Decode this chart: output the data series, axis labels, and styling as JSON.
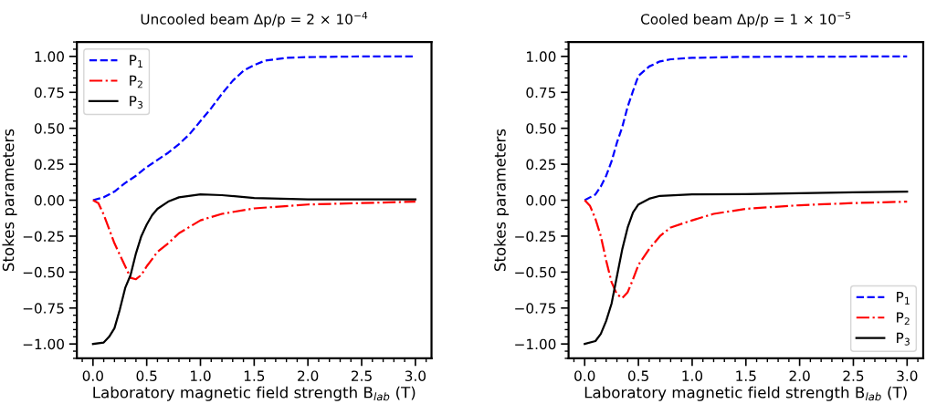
{
  "chart_data": [
    {
      "type": "line",
      "title": "Uncooled beam Δp/p = 2 × 10$^{−4}$",
      "xlabel": "Laboratory magnetic field strength B$_{lab}$ (T)",
      "ylabel": "Stokes parameters",
      "xlim": [
        -0.15,
        3.15
      ],
      "ylim": [
        -1.1,
        1.1
      ],
      "xticks": [
        {
          "value": 0,
          "label": "0.0"
        },
        {
          "value": 0.5,
          "label": "0.5"
        },
        {
          "value": 1,
          "label": "1.0"
        },
        {
          "value": 1.5,
          "label": "1.5"
        },
        {
          "value": 2,
          "label": "2.0"
        },
        {
          "value": 2.5,
          "label": "2.5"
        },
        {
          "value": 3,
          "label": "3.0"
        }
      ],
      "yticks": [
        {
          "value": -1,
          "label": "−1.00"
        },
        {
          "value": -0.75,
          "label": "−0.75"
        },
        {
          "value": -0.5,
          "label": "−0.50"
        },
        {
          "value": -0.25,
          "label": "−0.25"
        },
        {
          "value": 0,
          "label": "0.00"
        },
        {
          "value": 0.25,
          "label": "0.25"
        },
        {
          "value": 0.5,
          "label": "0.50"
        },
        {
          "value": 0.75,
          "label": "0.75"
        },
        {
          "value": 1,
          "label": "1.00"
        }
      ],
      "grid": false,
      "legend": "top left",
      "marker": "none",
      "series": [
        {
          "name": "P$_{1}$",
          "color": "#0000ff",
          "line_style": "dashed",
          "x": [
            0,
            0.1,
            0.2,
            0.3,
            0.4,
            0.5,
            0.6,
            0.7,
            0.8,
            0.9,
            1.0,
            1.1,
            1.2,
            1.3,
            1.4,
            1.5,
            1.6,
            1.7,
            1.8,
            2.0,
            2.5,
            3.0
          ],
          "values": [
            0,
            0.02,
            0.06,
            0.12,
            0.17,
            0.23,
            0.28,
            0.33,
            0.39,
            0.46,
            0.55,
            0.64,
            0.74,
            0.83,
            0.9,
            0.94,
            0.97,
            0.98,
            0.99,
            0.995,
            1.0,
            1.0
          ]
        },
        {
          "name": "P$_{2}$",
          "color": "#ff0000",
          "line_style": "dashdot",
          "x": [
            0,
            0.05,
            0.1,
            0.2,
            0.3,
            0.35,
            0.4,
            0.45,
            0.5,
            0.6,
            0.7,
            0.8,
            1.0,
            1.2,
            1.5,
            2.0,
            2.5,
            3.0
          ],
          "values": [
            0,
            -0.02,
            -0.1,
            -0.3,
            -0.46,
            -0.54,
            -0.55,
            -0.52,
            -0.46,
            -0.36,
            -0.3,
            -0.23,
            -0.14,
            -0.095,
            -0.057,
            -0.03,
            -0.02,
            -0.01
          ]
        },
        {
          "name": "P$_{3}$",
          "color": "#000000",
          "line_style": "solid",
          "x": [
            0,
            0.1,
            0.15,
            0.2,
            0.25,
            0.3,
            0.35,
            0.4,
            0.45,
            0.5,
            0.55,
            0.6,
            0.7,
            0.8,
            1.0,
            1.2,
            1.5,
            2.0,
            3.0
          ],
          "values": [
            -1,
            -0.99,
            -0.95,
            -0.89,
            -0.76,
            -0.61,
            -0.52,
            -0.37,
            -0.25,
            -0.17,
            -0.105,
            -0.06,
            -0.01,
            0.02,
            0.04,
            0.035,
            0.015,
            0.005,
            0.005
          ]
        }
      ]
    },
    {
      "type": "line",
      "title": "Cooled beam Δp/p = 1 × 10$^{−5}$",
      "xlabel": "Laboratory magnetic field strength B$_{lab}$ (T)",
      "ylabel": "Stokes parameters",
      "xlim": [
        -0.15,
        3.15
      ],
      "ylim": [
        -1.1,
        1.1
      ],
      "xticks": [
        {
          "value": 0,
          "label": "0.0"
        },
        {
          "value": 0.5,
          "label": "0.5"
        },
        {
          "value": 1,
          "label": "1.0"
        },
        {
          "value": 1.5,
          "label": "1.5"
        },
        {
          "value": 2,
          "label": "2.0"
        },
        {
          "value": 2.5,
          "label": "2.5"
        },
        {
          "value": 3,
          "label": "3.0"
        }
      ],
      "yticks": [
        {
          "value": -1,
          "label": "−1.00"
        },
        {
          "value": -0.75,
          "label": "−0.75"
        },
        {
          "value": -0.5,
          "label": "−0.50"
        },
        {
          "value": -0.25,
          "label": "−0.25"
        },
        {
          "value": 0,
          "label": "0.00"
        },
        {
          "value": 0.25,
          "label": "0.25"
        },
        {
          "value": 0.5,
          "label": "0.50"
        },
        {
          "value": 0.75,
          "label": "0.75"
        },
        {
          "value": 1,
          "label": "1.00"
        }
      ],
      "grid": false,
      "legend": "bottom right",
      "marker": "none",
      "series": [
        {
          "name": "P$_{1}$",
          "color": "#0000ff",
          "line_style": "dashed",
          "x": [
            0,
            0.1,
            0.15,
            0.2,
            0.25,
            0.3,
            0.35,
            0.4,
            0.45,
            0.5,
            0.6,
            0.7,
            0.8,
            1.0,
            1.5,
            3.0
          ],
          "values": [
            0,
            0.04,
            0.095,
            0.17,
            0.27,
            0.4,
            0.51,
            0.65,
            0.76,
            0.865,
            0.93,
            0.965,
            0.98,
            0.99,
            0.997,
            1.0
          ]
        },
        {
          "name": "P$_{2}$",
          "color": "#ff0000",
          "line_style": "dashdot",
          "x": [
            0,
            0.05,
            0.1,
            0.15,
            0.2,
            0.25,
            0.3,
            0.35,
            0.4,
            0.45,
            0.5,
            0.6,
            0.7,
            0.8,
            1.0,
            1.2,
            1.5,
            2.0,
            2.5,
            3.0
          ],
          "values": [
            0,
            -0.04,
            -0.13,
            -0.25,
            -0.42,
            -0.57,
            -0.655,
            -0.68,
            -0.64,
            -0.55,
            -0.45,
            -0.34,
            -0.25,
            -0.19,
            -0.14,
            -0.095,
            -0.06,
            -0.035,
            -0.02,
            -0.01
          ]
        },
        {
          "name": "P$_{3}$",
          "color": "#000000",
          "line_style": "solid",
          "x": [
            0,
            0.1,
            0.15,
            0.2,
            0.25,
            0.3,
            0.35,
            0.4,
            0.45,
            0.5,
            0.6,
            0.7,
            1.0,
            1.5,
            2.0,
            2.5,
            3.0
          ],
          "values": [
            -1,
            -0.98,
            -0.93,
            -0.84,
            -0.72,
            -0.53,
            -0.34,
            -0.19,
            -0.085,
            -0.03,
            0.01,
            0.03,
            0.04,
            0.042,
            0.048,
            0.055,
            0.06
          ]
        }
      ]
    }
  ]
}
